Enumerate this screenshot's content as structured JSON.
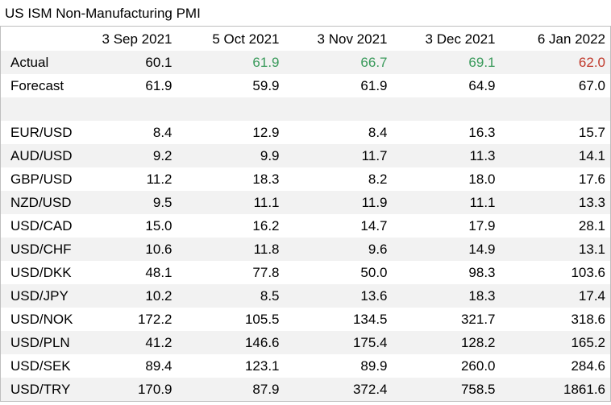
{
  "title": "US ISM Non-Manufacturing PMI",
  "header": [
    "",
    "3 Sep 2021",
    "5 Oct 2021",
    "3 Nov 2021",
    "3 Dec 2021",
    "6 Jan 2022"
  ],
  "colors": {
    "positive": "#3a9a5b",
    "negative": "#c0392b"
  },
  "actual": {
    "label": "Actual",
    "values": [
      "60.1",
      "61.9",
      "66.7",
      "69.1",
      "62.0"
    ]
  },
  "forecast": {
    "label": "Forecast",
    "values": [
      "61.9",
      "59.9",
      "61.9",
      "64.9",
      "67.0"
    ]
  },
  "pairs": [
    {
      "label": "EUR/USD",
      "values": [
        "8.4",
        "12.9",
        "8.4",
        "16.3",
        "15.7"
      ]
    },
    {
      "label": "AUD/USD",
      "values": [
        "9.2",
        "9.9",
        "11.7",
        "11.3",
        "14.1"
      ]
    },
    {
      "label": "GBP/USD",
      "values": [
        "11.2",
        "18.3",
        "8.2",
        "18.0",
        "17.6"
      ]
    },
    {
      "label": "NZD/USD",
      "values": [
        "9.5",
        "11.1",
        "11.9",
        "11.1",
        "13.3"
      ]
    },
    {
      "label": "USD/CAD",
      "values": [
        "15.0",
        "16.2",
        "14.7",
        "17.9",
        "28.1"
      ]
    },
    {
      "label": "USD/CHF",
      "values": [
        "10.6",
        "11.8",
        "9.6",
        "14.9",
        "13.1"
      ]
    },
    {
      "label": "USD/DKK",
      "values": [
        "48.1",
        "77.8",
        "50.0",
        "98.3",
        "103.6"
      ]
    },
    {
      "label": "USD/JPY",
      "values": [
        "10.2",
        "8.5",
        "13.6",
        "18.3",
        "17.4"
      ]
    },
    {
      "label": "USD/NOK",
      "values": [
        "172.2",
        "105.5",
        "134.5",
        "321.7",
        "318.6"
      ]
    },
    {
      "label": "USD/PLN",
      "values": [
        "41.2",
        "146.6",
        "175.4",
        "128.2",
        "165.2"
      ]
    },
    {
      "label": "USD/SEK",
      "values": [
        "89.4",
        "123.1",
        "89.9",
        "260.0",
        "284.6"
      ]
    },
    {
      "label": "USD/TRY",
      "values": [
        "170.9",
        "87.9",
        "372.4",
        "758.5",
        "1861.6"
      ]
    }
  ]
}
